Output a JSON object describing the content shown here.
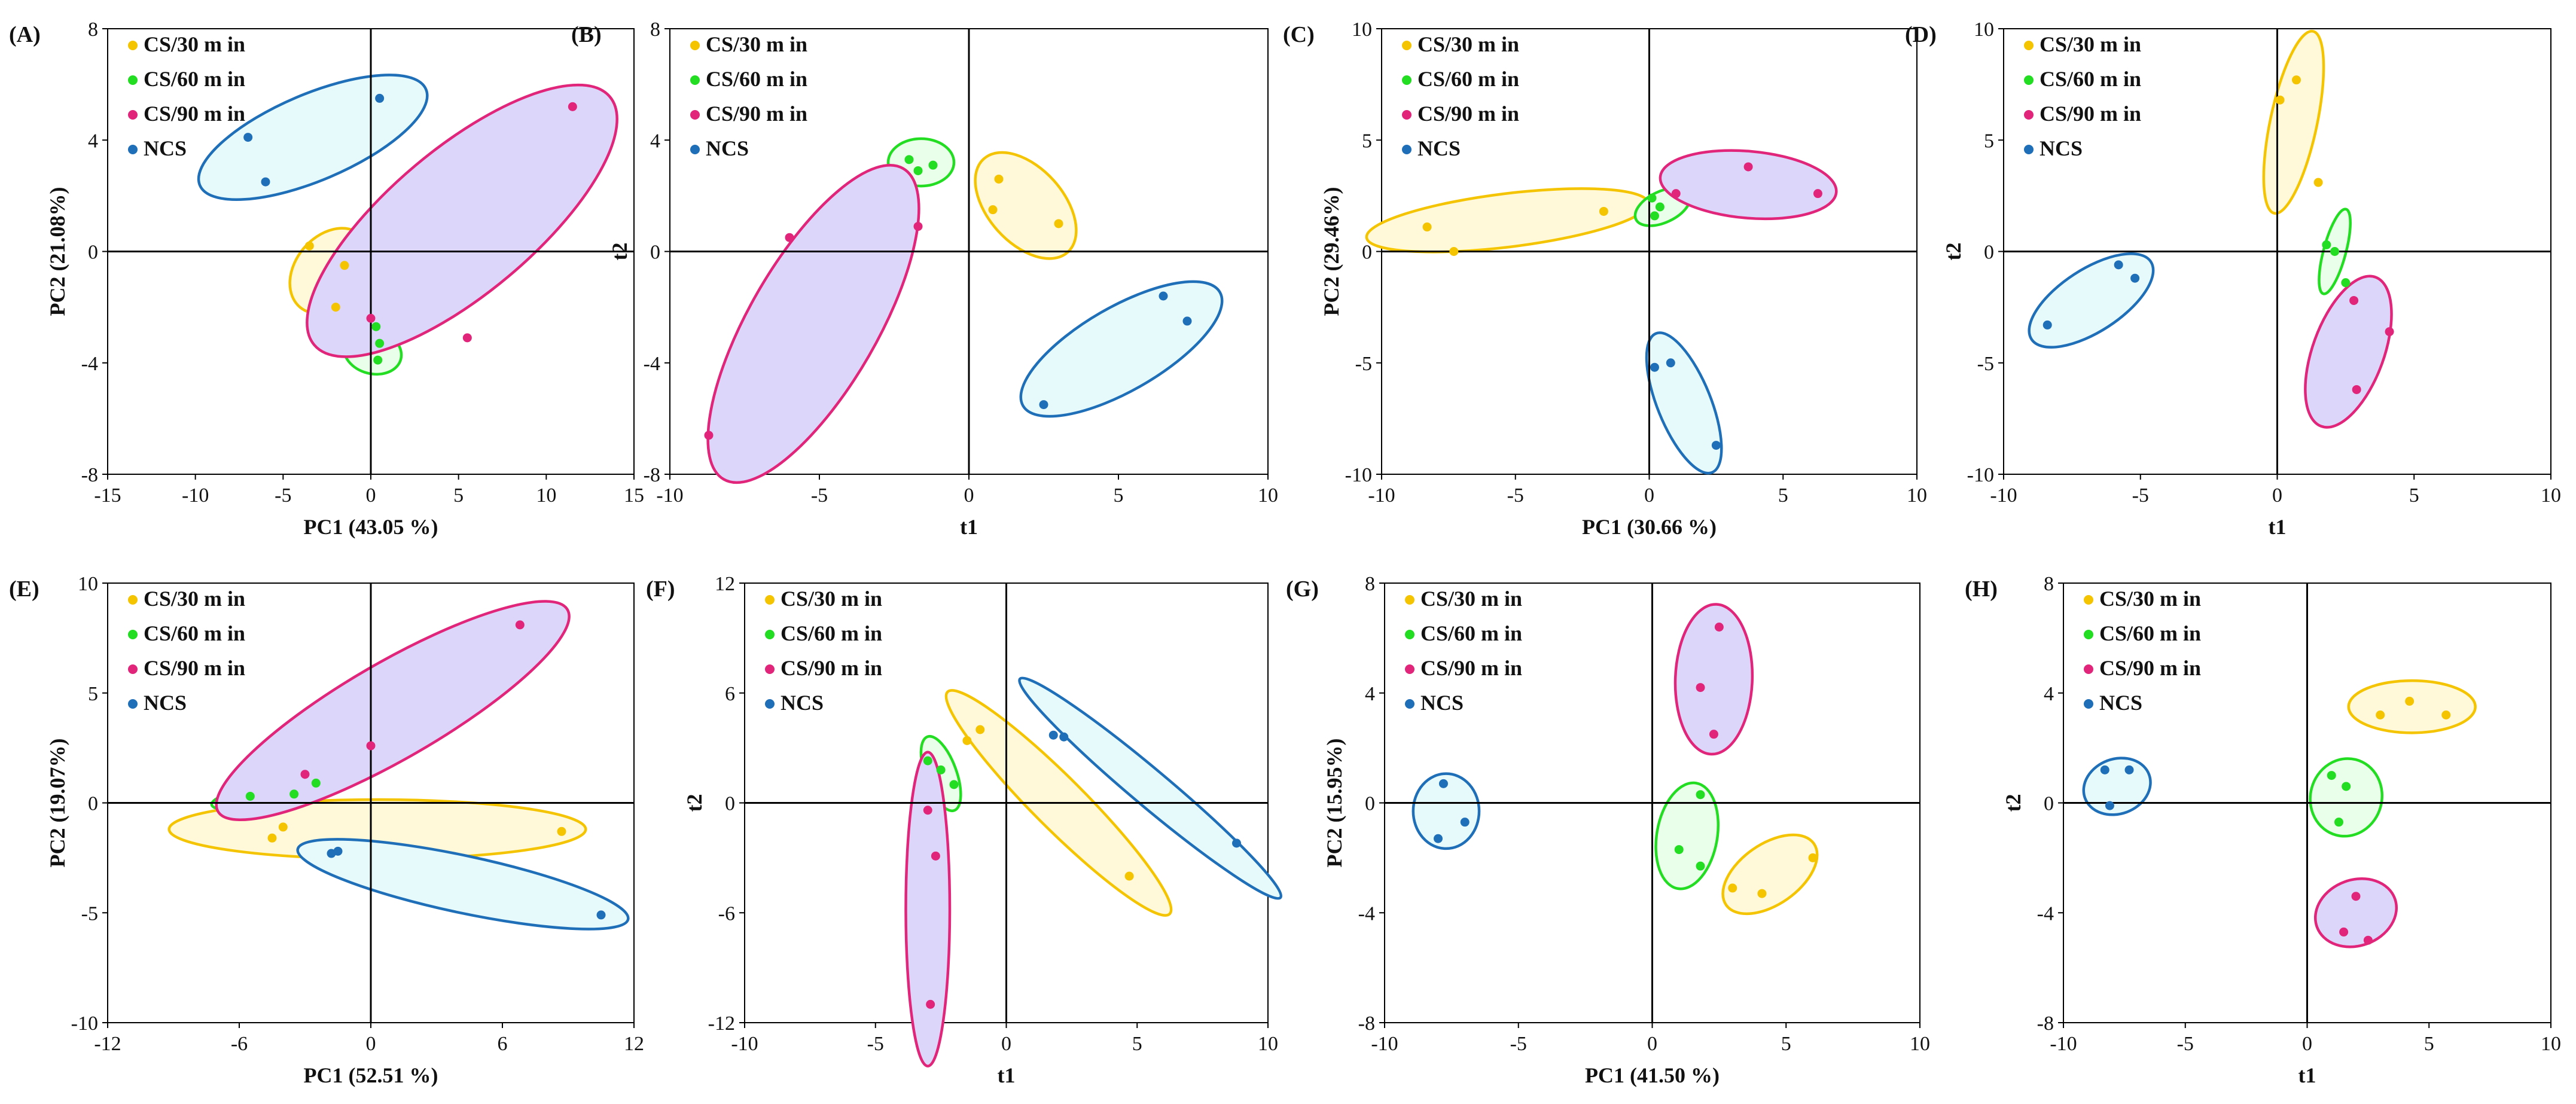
{
  "figure": {
    "layout": "2 rows x 4 score plots"
  },
  "colors": {
    "CS/30 m in": "#f5c400",
    "CS/60 m in": "#22dd22",
    "CS/90 m in": "#e0257a",
    "NCS": "#1f6fb8",
    "fill_30": "#fff9d9",
    "fill_60": "#e9ffe9",
    "fill_90": "#ddd6fb",
    "fill_ncs": "#e6fafc"
  },
  "chart_data": [
    {
      "panel": "(A)",
      "type": "scatter",
      "xlabel": "PC1 (43.05 %)",
      "ylabel": "PC2 (21.08%)",
      "xlim": [
        -15,
        15
      ],
      "ylim": [
        -8,
        8
      ],
      "xticks": [
        "-15",
        "-10",
        "-5",
        "0",
        "5",
        "10",
        "15"
      ],
      "yticks": [
        "8",
        "4",
        "0",
        "-4",
        "-8"
      ],
      "legend": [
        "CS/30 m in",
        "CS/60 m in",
        "CS/90 m in",
        "NCS"
      ],
      "series": [
        {
          "name": "CS/30 m in",
          "points": [
            [
              -3.5,
              0.2
            ],
            [
              -1.5,
              -0.5
            ],
            [
              -2.0,
              -2.0
            ]
          ],
          "ellipse": {
            "cx": -2.3,
            "cy": -0.7,
            "rx": 2.0,
            "ry": 1.7,
            "angle": -40
          }
        },
        {
          "name": "CS/60 m in",
          "points": [
            [
              0.3,
              -2.7
            ],
            [
              0.5,
              -3.3
            ],
            [
              0.4,
              -3.9
            ]
          ],
          "ellipse": {
            "cx": 0.1,
            "cy": -3.6,
            "rx": 1.25,
            "ry": 1.05,
            "angle": 75
          }
        },
        {
          "name": "CS/90 m in",
          "points": [
            [
              11.5,
              5.2
            ],
            [
              5.5,
              -3.1
            ],
            [
              0.0,
              -2.4
            ]
          ],
          "ellipse": {
            "cx": 5.2,
            "cy": 1.1,
            "rx": 11.0,
            "ry": 2.6,
            "angle": 40
          }
        },
        {
          "name": "NCS",
          "points": [
            [
              -7.0,
              4.1
            ],
            [
              -6.0,
              2.5
            ],
            [
              0.5,
              5.5
            ]
          ],
          "ellipse": {
            "cx": -3.3,
            "cy": 4.1,
            "rx": 7.0,
            "ry": 1.55,
            "angle": 23
          }
        }
      ]
    },
    {
      "panel": "(B)",
      "type": "scatter",
      "xlabel": "t1",
      "ylabel": "t2",
      "xlim": [
        -10,
        10
      ],
      "ylim": [
        -8,
        8
      ],
      "xticks": [
        "-10",
        "-5",
        "0",
        "5",
        "10"
      ],
      "yticks": [
        "8",
        "4",
        "0",
        "-4",
        "-8"
      ],
      "legend": [
        "CS/30 m in",
        "CS/60 m in",
        "CS/90 m in",
        "NCS"
      ],
      "series": [
        {
          "name": "CS/30 m in",
          "points": [
            [
              1.0,
              2.6
            ],
            [
              0.8,
              1.5
            ],
            [
              3.0,
              1.0
            ]
          ],
          "ellipse": {
            "cx": 1.9,
            "cy": 1.65,
            "rx": 2.1,
            "ry": 1.35,
            "angle": -48
          }
        },
        {
          "name": "CS/60 m in",
          "points": [
            [
              -2.0,
              3.3
            ],
            [
              -1.7,
              2.9
            ],
            [
              -1.2,
              3.1
            ]
          ],
          "ellipse": {
            "cx": -1.6,
            "cy": 3.2,
            "rx": 1.1,
            "ry": 0.85,
            "angle": 0
          }
        },
        {
          "name": "CS/90 m in",
          "points": [
            [
              -6.0,
              0.5
            ],
            [
              -1.7,
              0.9
            ],
            [
              -8.7,
              -6.6
            ]
          ],
          "ellipse": {
            "cx": -5.2,
            "cy": -2.6,
            "rx": 6.0,
            "ry": 2.3,
            "angle": 60
          }
        },
        {
          "name": "NCS",
          "points": [
            [
              6.5,
              -1.6
            ],
            [
              7.3,
              -2.5
            ],
            [
              2.5,
              -5.5
            ]
          ],
          "ellipse": {
            "cx": 5.1,
            "cy": -3.5,
            "rx": 3.8,
            "ry": 1.5,
            "angle": 30
          }
        }
      ]
    },
    {
      "panel": "(C)",
      "type": "scatter",
      "xlabel": "PC1 (30.66 %)",
      "ylabel": "PC2 (29.46%)",
      "xlim": [
        -10,
        10
      ],
      "ylim": [
        -10,
        10
      ],
      "xticks": [
        "-10",
        "-5",
        "0",
        "5",
        "10"
      ],
      "yticks": [
        "10",
        "5",
        "0",
        "-5",
        "-10"
      ],
      "legend": [
        "CS/30 m in",
        "CS/60 m in",
        "CS/90 m in",
        "NCS"
      ],
      "series": [
        {
          "name": "CS/30 m in",
          "points": [
            [
              -8.3,
              1.1
            ],
            [
              -1.7,
              1.8
            ],
            [
              -7.3,
              0.0
            ]
          ],
          "ellipse": {
            "cx": -5.3,
            "cy": 1.4,
            "rx": 5.3,
            "ry": 1.2,
            "angle": 7
          }
        },
        {
          "name": "CS/60 m in",
          "points": [
            [
              0.1,
              2.4
            ],
            [
              0.4,
              2.0
            ],
            [
              0.2,
              1.6
            ]
          ],
          "ellipse": {
            "cx": 0.5,
            "cy": 2.0,
            "rx": 1.1,
            "ry": 0.7,
            "angle": 25
          }
        },
        {
          "name": "CS/90 m in",
          "points": [
            [
              1.0,
              2.6
            ],
            [
              3.7,
              3.8
            ],
            [
              6.3,
              2.6
            ]
          ],
          "ellipse": {
            "cx": 3.7,
            "cy": 3.0,
            "rx": 3.3,
            "ry": 1.5,
            "angle": -5
          }
        },
        {
          "name": "NCS",
          "points": [
            [
              0.2,
              -5.2
            ],
            [
              0.8,
              -5.0
            ],
            [
              2.5,
              -8.7
            ]
          ],
          "ellipse": {
            "cx": 1.3,
            "cy": -6.8,
            "rx": 2.8,
            "ry": 1.2,
            "angle": -68
          }
        }
      ]
    },
    {
      "panel": "(D)",
      "type": "scatter",
      "xlabel": "t1",
      "ylabel": "t2",
      "xlim": [
        -10,
        10
      ],
      "ylim": [
        -10,
        10
      ],
      "xticks": [
        "-10",
        "-5",
        "0",
        "5",
        "10"
      ],
      "yticks": [
        "10",
        "5",
        "0",
        "-5",
        "-10"
      ],
      "legend": [
        "CS/30 m in",
        "CS/60 m in",
        "CS/90 m in",
        "NCS"
      ],
      "series": [
        {
          "name": "CS/30 m in",
          "points": [
            [
              0.1,
              6.8
            ],
            [
              0.7,
              7.7
            ],
            [
              1.5,
              3.1
            ]
          ],
          "ellipse": {
            "cx": 0.6,
            "cy": 5.8,
            "rx": 3.4,
            "ry": 1.05,
            "angle": 78
          }
        },
        {
          "name": "CS/60 m in",
          "points": [
            [
              1.8,
              0.3
            ],
            [
              2.1,
              0.0
            ],
            [
              2.5,
              -1.4
            ]
          ],
          "ellipse": {
            "cx": 2.1,
            "cy": 0.0,
            "rx": 1.6,
            "ry": 0.5,
            "angle": 75
          }
        },
        {
          "name": "CS/90 m in",
          "points": [
            [
              2.8,
              -2.2
            ],
            [
              4.1,
              -3.6
            ],
            [
              2.9,
              -6.2
            ]
          ],
          "ellipse": {
            "cx": 2.6,
            "cy": -4.5,
            "rx": 2.9,
            "ry": 1.6,
            "angle": 70
          }
        },
        {
          "name": "NCS",
          "points": [
            [
              -5.8,
              -0.6
            ],
            [
              -5.2,
              -1.2
            ],
            [
              -8.4,
              -3.3
            ]
          ],
          "ellipse": {
            "cx": -6.8,
            "cy": -2.2,
            "rx": 2.6,
            "ry": 1.4,
            "angle": 33
          }
        }
      ]
    },
    {
      "panel": "(E)",
      "type": "scatter",
      "xlabel": "PC1 (52.51 %)",
      "ylabel": "PC2 (19.07%)",
      "xlim": [
        -12,
        12
      ],
      "ylim": [
        -10,
        10
      ],
      "xticks": [
        "-12",
        "-6",
        "0",
        "6",
        "12"
      ],
      "yticks": [
        "10",
        "5",
        "0",
        "-5",
        "-10"
      ],
      "legend": [
        "CS/30 m in",
        "CS/60 m in",
        "CS/90 m in",
        "NCS"
      ],
      "series": [
        {
          "name": "CS/30 m in",
          "points": [
            [
              -4.0,
              -1.1
            ],
            [
              -4.5,
              -1.6
            ],
            [
              8.7,
              -1.3
            ]
          ],
          "ellipse": {
            "cx": 0.3,
            "cy": -1.2,
            "rx": 9.5,
            "ry": 1.35,
            "angle": 0
          }
        },
        {
          "name": "CS/60 m in",
          "points": [
            [
              -5.5,
              0.3
            ],
            [
              -3.5,
              0.4
            ],
            [
              -2.5,
              0.9
            ]
          ],
          "ellipse": {
            "cx": -4.5,
            "cy": 0.4,
            "rx": 2.8,
            "ry": 0.55,
            "angle": 10
          }
        },
        {
          "name": "CS/90 m in",
          "points": [
            [
              -3.0,
              1.3
            ],
            [
              0.0,
              2.6
            ],
            [
              6.8,
              8.1
            ]
          ],
          "ellipse": {
            "cx": 1.0,
            "cy": 4.2,
            "rx": 9.2,
            "ry": 2.2,
            "angle": 30
          }
        },
        {
          "name": "NCS",
          "points": [
            [
              -1.8,
              -2.3
            ],
            [
              -1.5,
              -2.2
            ],
            [
              10.5,
              -5.1
            ]
          ],
          "ellipse": {
            "cx": 4.2,
            "cy": -3.7,
            "rx": 7.7,
            "ry": 1.3,
            "angle": -12
          }
        }
      ]
    },
    {
      "panel": "(F)",
      "type": "scatter",
      "xlabel": "t1",
      "ylabel": "t2",
      "xlim": [
        -10,
        10
      ],
      "ylim": [
        -12,
        12
      ],
      "xticks": [
        "-10",
        "-5",
        "0",
        "5",
        "10"
      ],
      "yticks": [
        "12",
        "6",
        "0",
        "-6",
        "-12"
      ],
      "legend": [
        "CS/30 m in",
        "CS/60 m in",
        "CS/90 m in",
        "NCS"
      ],
      "series": [
        {
          "name": "CS/30 m in",
          "points": [
            [
              -1.0,
              4.0
            ],
            [
              -1.5,
              3.4
            ],
            [
              4.7,
              -4.0
            ]
          ],
          "ellipse": {
            "cx": 2.0,
            "cy": 0.0,
            "rx": 6.0,
            "ry": 1.4,
            "angle": -45
          }
        },
        {
          "name": "CS/60 m in",
          "points": [
            [
              -3.0,
              2.3
            ],
            [
              -2.5,
              1.8
            ],
            [
              -2.0,
              1.0
            ]
          ],
          "ellipse": {
            "cx": -2.5,
            "cy": 1.6,
            "rx": 1.5,
            "ry": 0.85,
            "angle": -70
          }
        },
        {
          "name": "CS/90 m in",
          "points": [
            [
              -3.0,
              -0.4
            ],
            [
              -2.7,
              -2.9
            ],
            [
              -2.9,
              -11.0
            ]
          ],
          "ellipse": {
            "cx": -3.0,
            "cy": -5.8,
            "rx": 6.0,
            "ry": 1.2,
            "angle": 90
          }
        },
        {
          "name": "NCS",
          "points": [
            [
              1.8,
              3.7
            ],
            [
              2.2,
              3.6
            ],
            [
              8.8,
              -2.2
            ]
          ],
          "ellipse": {
            "cx": 5.5,
            "cy": 0.8,
            "rx": 6.5,
            "ry": 1.0,
            "angle": -40
          }
        }
      ]
    },
    {
      "panel": "(G)",
      "type": "scatter",
      "xlabel": "PC1 (41.50 %)",
      "ylabel": "PC2 (15.95%)",
      "xlim": [
        -10,
        10
      ],
      "ylim": [
        -8,
        8
      ],
      "xticks": [
        "-10",
        "-5",
        "0",
        "5",
        "10"
      ],
      "yticks": [
        "8",
        "4",
        "0",
        "-4",
        "-8"
      ],
      "legend": [
        "CS/30 m in",
        "CS/60 m in",
        "CS/90 m in",
        "NCS"
      ],
      "series": [
        {
          "name": "CS/30 m in",
          "points": [
            [
              6.0,
              -2.0
            ],
            [
              4.1,
              -3.3
            ],
            [
              3.0,
              -3.1
            ]
          ],
          "ellipse": {
            "cx": 4.4,
            "cy": -2.6,
            "rx": 2.0,
            "ry": 1.1,
            "angle": 35
          }
        },
        {
          "name": "CS/60 m in",
          "points": [
            [
              1.8,
              0.3
            ],
            [
              1.0,
              -1.7
            ],
            [
              1.8,
              -2.3
            ]
          ],
          "ellipse": {
            "cx": 1.3,
            "cy": -1.2,
            "rx": 2.0,
            "ry": 1.1,
            "angle": 80
          }
        },
        {
          "name": "CS/90 m in",
          "points": [
            [
              2.5,
              6.4
            ],
            [
              1.8,
              4.2
            ],
            [
              2.3,
              2.5
            ]
          ],
          "ellipse": {
            "cx": 2.3,
            "cy": 4.5,
            "rx": 2.8,
            "ry": 1.4,
            "angle": 88
          }
        },
        {
          "name": "NCS",
          "points": [
            [
              -7.8,
              0.7
            ],
            [
              -7.0,
              -0.7
            ],
            [
              -8.0,
              -1.3
            ]
          ],
          "ellipse": {
            "cx": -7.7,
            "cy": -0.3,
            "rx": 1.4,
            "ry": 1.2,
            "angle": 90
          }
        }
      ]
    },
    {
      "panel": "(H)",
      "type": "scatter",
      "xlabel": "t1",
      "ylabel": "t2",
      "xlim": [
        -10,
        10
      ],
      "ylim": [
        -8,
        8
      ],
      "xticks": [
        "-10",
        "-5",
        "0",
        "5",
        "10"
      ],
      "yticks": [
        "8",
        "4",
        "0",
        "-4",
        "-8"
      ],
      "legend": [
        "CS/30 m in",
        "CS/60 m in",
        "CS/90 m in",
        "NCS"
      ],
      "series": [
        {
          "name": "CS/30 m in",
          "points": [
            [
              3.0,
              3.2
            ],
            [
              4.2,
              3.7
            ],
            [
              5.7,
              3.2
            ]
          ],
          "ellipse": {
            "cx": 4.3,
            "cy": 3.5,
            "rx": 2.6,
            "ry": 0.95,
            "angle": 0
          }
        },
        {
          "name": "CS/60 m in",
          "points": [
            [
              1.0,
              1.0
            ],
            [
              1.6,
              0.6
            ],
            [
              1.3,
              -0.7
            ]
          ],
          "ellipse": {
            "cx": 1.6,
            "cy": 0.2,
            "rx": 1.6,
            "ry": 1.3,
            "angle": 75
          }
        },
        {
          "name": "CS/90 m in",
          "points": [
            [
              2.0,
              -3.4
            ],
            [
              1.5,
              -4.7
            ],
            [
              2.5,
              -5.0
            ]
          ],
          "ellipse": {
            "cx": 2.0,
            "cy": -4.0,
            "rx": 1.7,
            "ry": 1.2,
            "angle": 20
          }
        },
        {
          "name": "NCS",
          "points": [
            [
              -8.3,
              1.2
            ],
            [
              -7.3,
              1.2
            ],
            [
              -8.1,
              -0.1
            ]
          ],
          "ellipse": {
            "cx": -7.8,
            "cy": 0.6,
            "rx": 1.4,
            "ry": 1.0,
            "angle": 20
          }
        }
      ]
    }
  ]
}
